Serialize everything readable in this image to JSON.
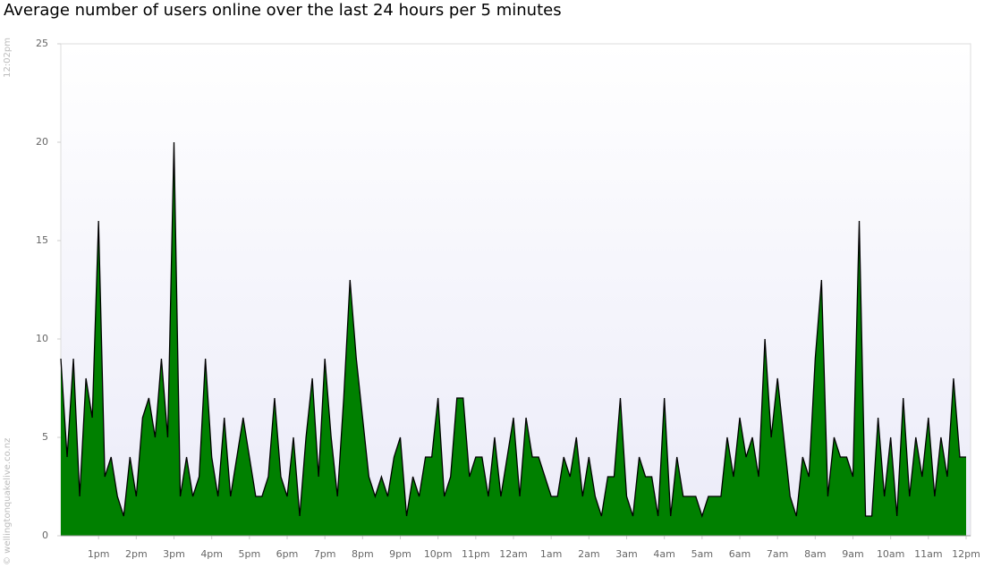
{
  "chart_data": {
    "type": "area",
    "title": "Average number of users online over the last 24 hours per 5 minutes",
    "timestamp": "12:02pm",
    "credit": "© wellingtonquakelive.co.nz",
    "categories": [
      null,
      null,
      null,
      null,
      null,
      null,
      "1pm",
      null,
      null,
      null,
      null,
      null,
      "2pm",
      null,
      null,
      null,
      null,
      null,
      "3pm",
      null,
      null,
      null,
      null,
      null,
      "4pm",
      null,
      null,
      null,
      null,
      null,
      "5pm",
      null,
      null,
      null,
      null,
      null,
      "6pm",
      null,
      null,
      null,
      null,
      null,
      "7pm",
      null,
      null,
      null,
      null,
      null,
      "8pm",
      null,
      null,
      null,
      null,
      null,
      "9pm",
      null,
      null,
      null,
      null,
      null,
      "10pm",
      null,
      null,
      null,
      null,
      null,
      "11pm",
      null,
      null,
      null,
      null,
      null,
      "12am",
      null,
      null,
      null,
      null,
      null,
      "1am",
      null,
      null,
      null,
      null,
      null,
      "2am",
      null,
      null,
      null,
      null,
      null,
      "3am",
      null,
      null,
      null,
      null,
      null,
      "4am",
      null,
      null,
      null,
      null,
      null,
      "5am",
      null,
      null,
      null,
      null,
      null,
      "6am",
      null,
      null,
      null,
      null,
      null,
      "7am",
      null,
      null,
      null,
      null,
      null,
      "8am",
      null,
      null,
      null,
      null,
      null,
      "9am",
      null,
      null,
      null,
      null,
      null,
      "10am",
      null,
      null,
      null,
      null,
      null,
      "11am",
      null,
      null,
      null,
      null,
      null,
      "12pm"
    ],
    "values": [
      9,
      4,
      9,
      2,
      8,
      6,
      16,
      3,
      4,
      2,
      1,
      4,
      2,
      6,
      7,
      5,
      9,
      5,
      20,
      2,
      4,
      2,
      3,
      9,
      4,
      2,
      6,
      2,
      4,
      6,
      4,
      2,
      2,
      3,
      7,
      3,
      2,
      5,
      1,
      5,
      8,
      3,
      9,
      5,
      2,
      7,
      13,
      9,
      6,
      3,
      2,
      3,
      2,
      4,
      5,
      1,
      3,
      2,
      4,
      4,
      7,
      2,
      3,
      7,
      7,
      3,
      4,
      4,
      2,
      5,
      2,
      4,
      6,
      2,
      6,
      4,
      4,
      3,
      2,
      2,
      4,
      3,
      5,
      2,
      4,
      2,
      1,
      3,
      3,
      7,
      2,
      1,
      4,
      3,
      3,
      1,
      7,
      1,
      4,
      2,
      2,
      2,
      1,
      2,
      2,
      2,
      5,
      3,
      6,
      4,
      5,
      3,
      10,
      5,
      8,
      5,
      2,
      1,
      4,
      3,
      9,
      13,
      2,
      5,
      4,
      4,
      3,
      16,
      1,
      1,
      6,
      2,
      5,
      1,
      7,
      2,
      5,
      3,
      6,
      2,
      5,
      3,
      8,
      4,
      4
    ],
    "color": "#008000",
    "line_color": "#000000",
    "ylim": [
      0,
      25
    ],
    "yticks": [
      0,
      5,
      10,
      15,
      20,
      25
    ],
    "grid": false
  }
}
